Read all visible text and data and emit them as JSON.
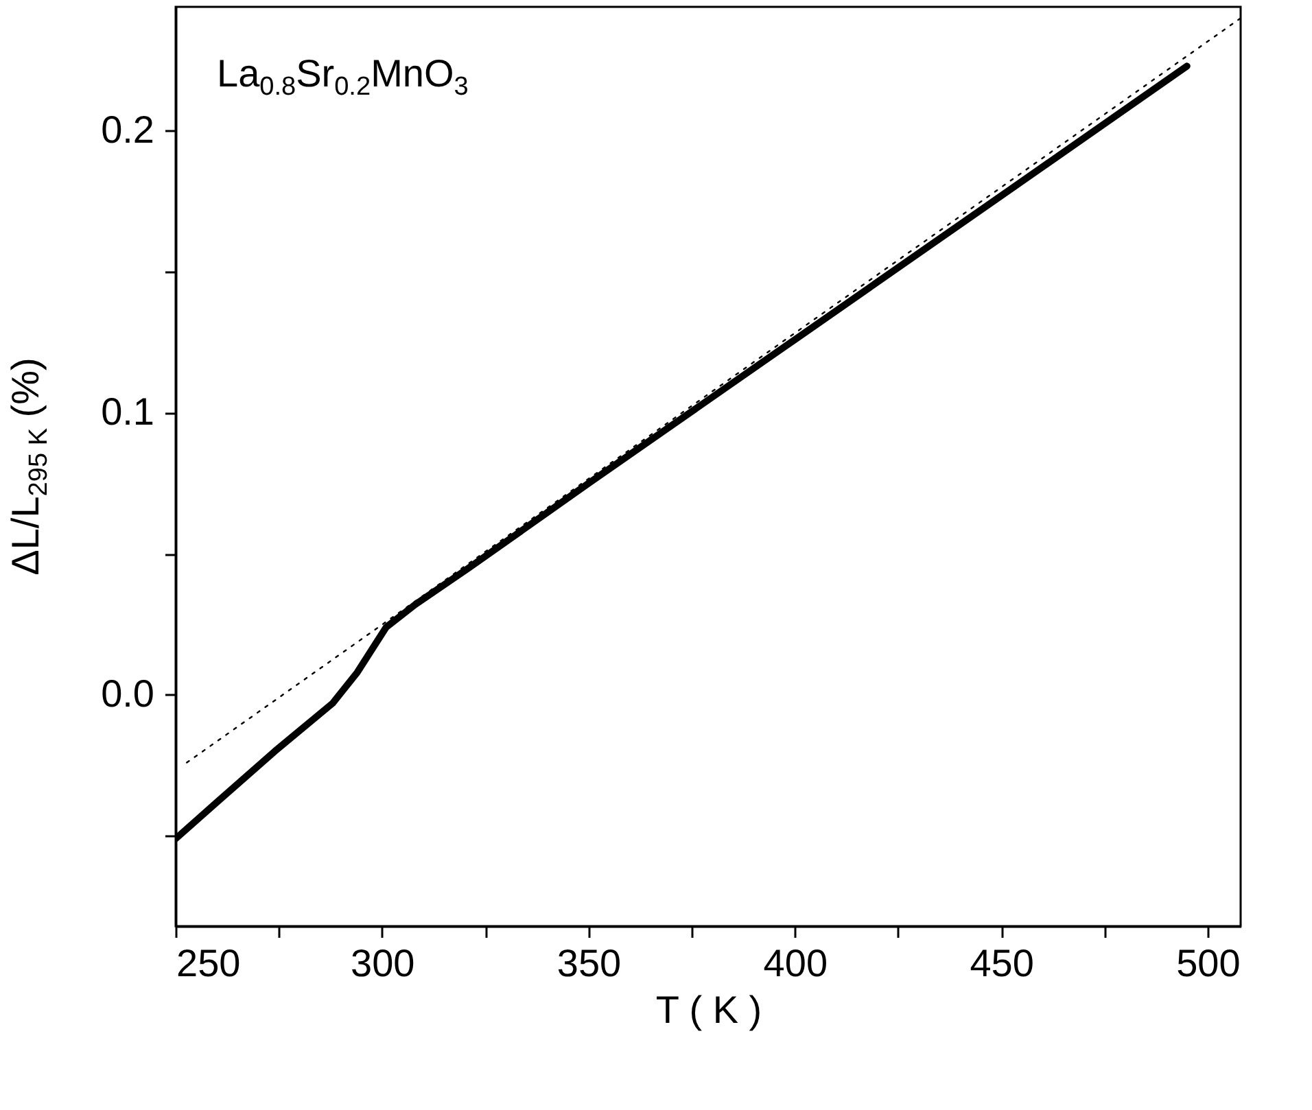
{
  "chart_data": {
    "type": "line",
    "xlabel": "T ( K )",
    "ylabel": "ΔL/L$_{295 K}$ (%)",
    "annotations": [
      "La$_{0.8}$Sr$_{0.2}$MnO$_{3}$"
    ],
    "xlim": [
      250,
      508
    ],
    "ylim": [
      -0.082,
      0.244
    ],
    "xticks": [
      250,
      {
        "value": 275,
        "label": null
      },
      300,
      {
        "value": 325,
        "label": null
      },
      350,
      {
        "value": 375,
        "label": null
      },
      400,
      {
        "value": 425,
        "label": null
      },
      450,
      {
        "value": 475,
        "label": null
      },
      500
    ],
    "yticks": [
      {
        "value": -0.05,
        "label": null
      },
      {
        "value": 0,
        "label": "0.0"
      },
      {
        "value": 0.05,
        "label": null
      },
      0.1,
      {
        "value": 0.15,
        "label": null
      },
      0.2
    ],
    "grid": false,
    "legend": false,
    "series": [
      {
        "color": "#000000",
        "line_style": "solid",
        "x": [
          250,
          260,
          274,
          288,
          294,
          301,
          308,
          321,
          350,
          400,
          450,
          495
        ],
        "values": [
          -0.051,
          -0.038,
          -0.02,
          -0.003,
          0.008,
          0.024,
          0.032,
          0.045,
          0.075,
          0.126,
          0.177,
          0.223
        ]
      },
      {
        "color": "#000000",
        "line_style": "dotted",
        "x": [
          252.7,
          508
        ],
        "values": [
          -0.024,
          0.24
        ]
      }
    ]
  }
}
